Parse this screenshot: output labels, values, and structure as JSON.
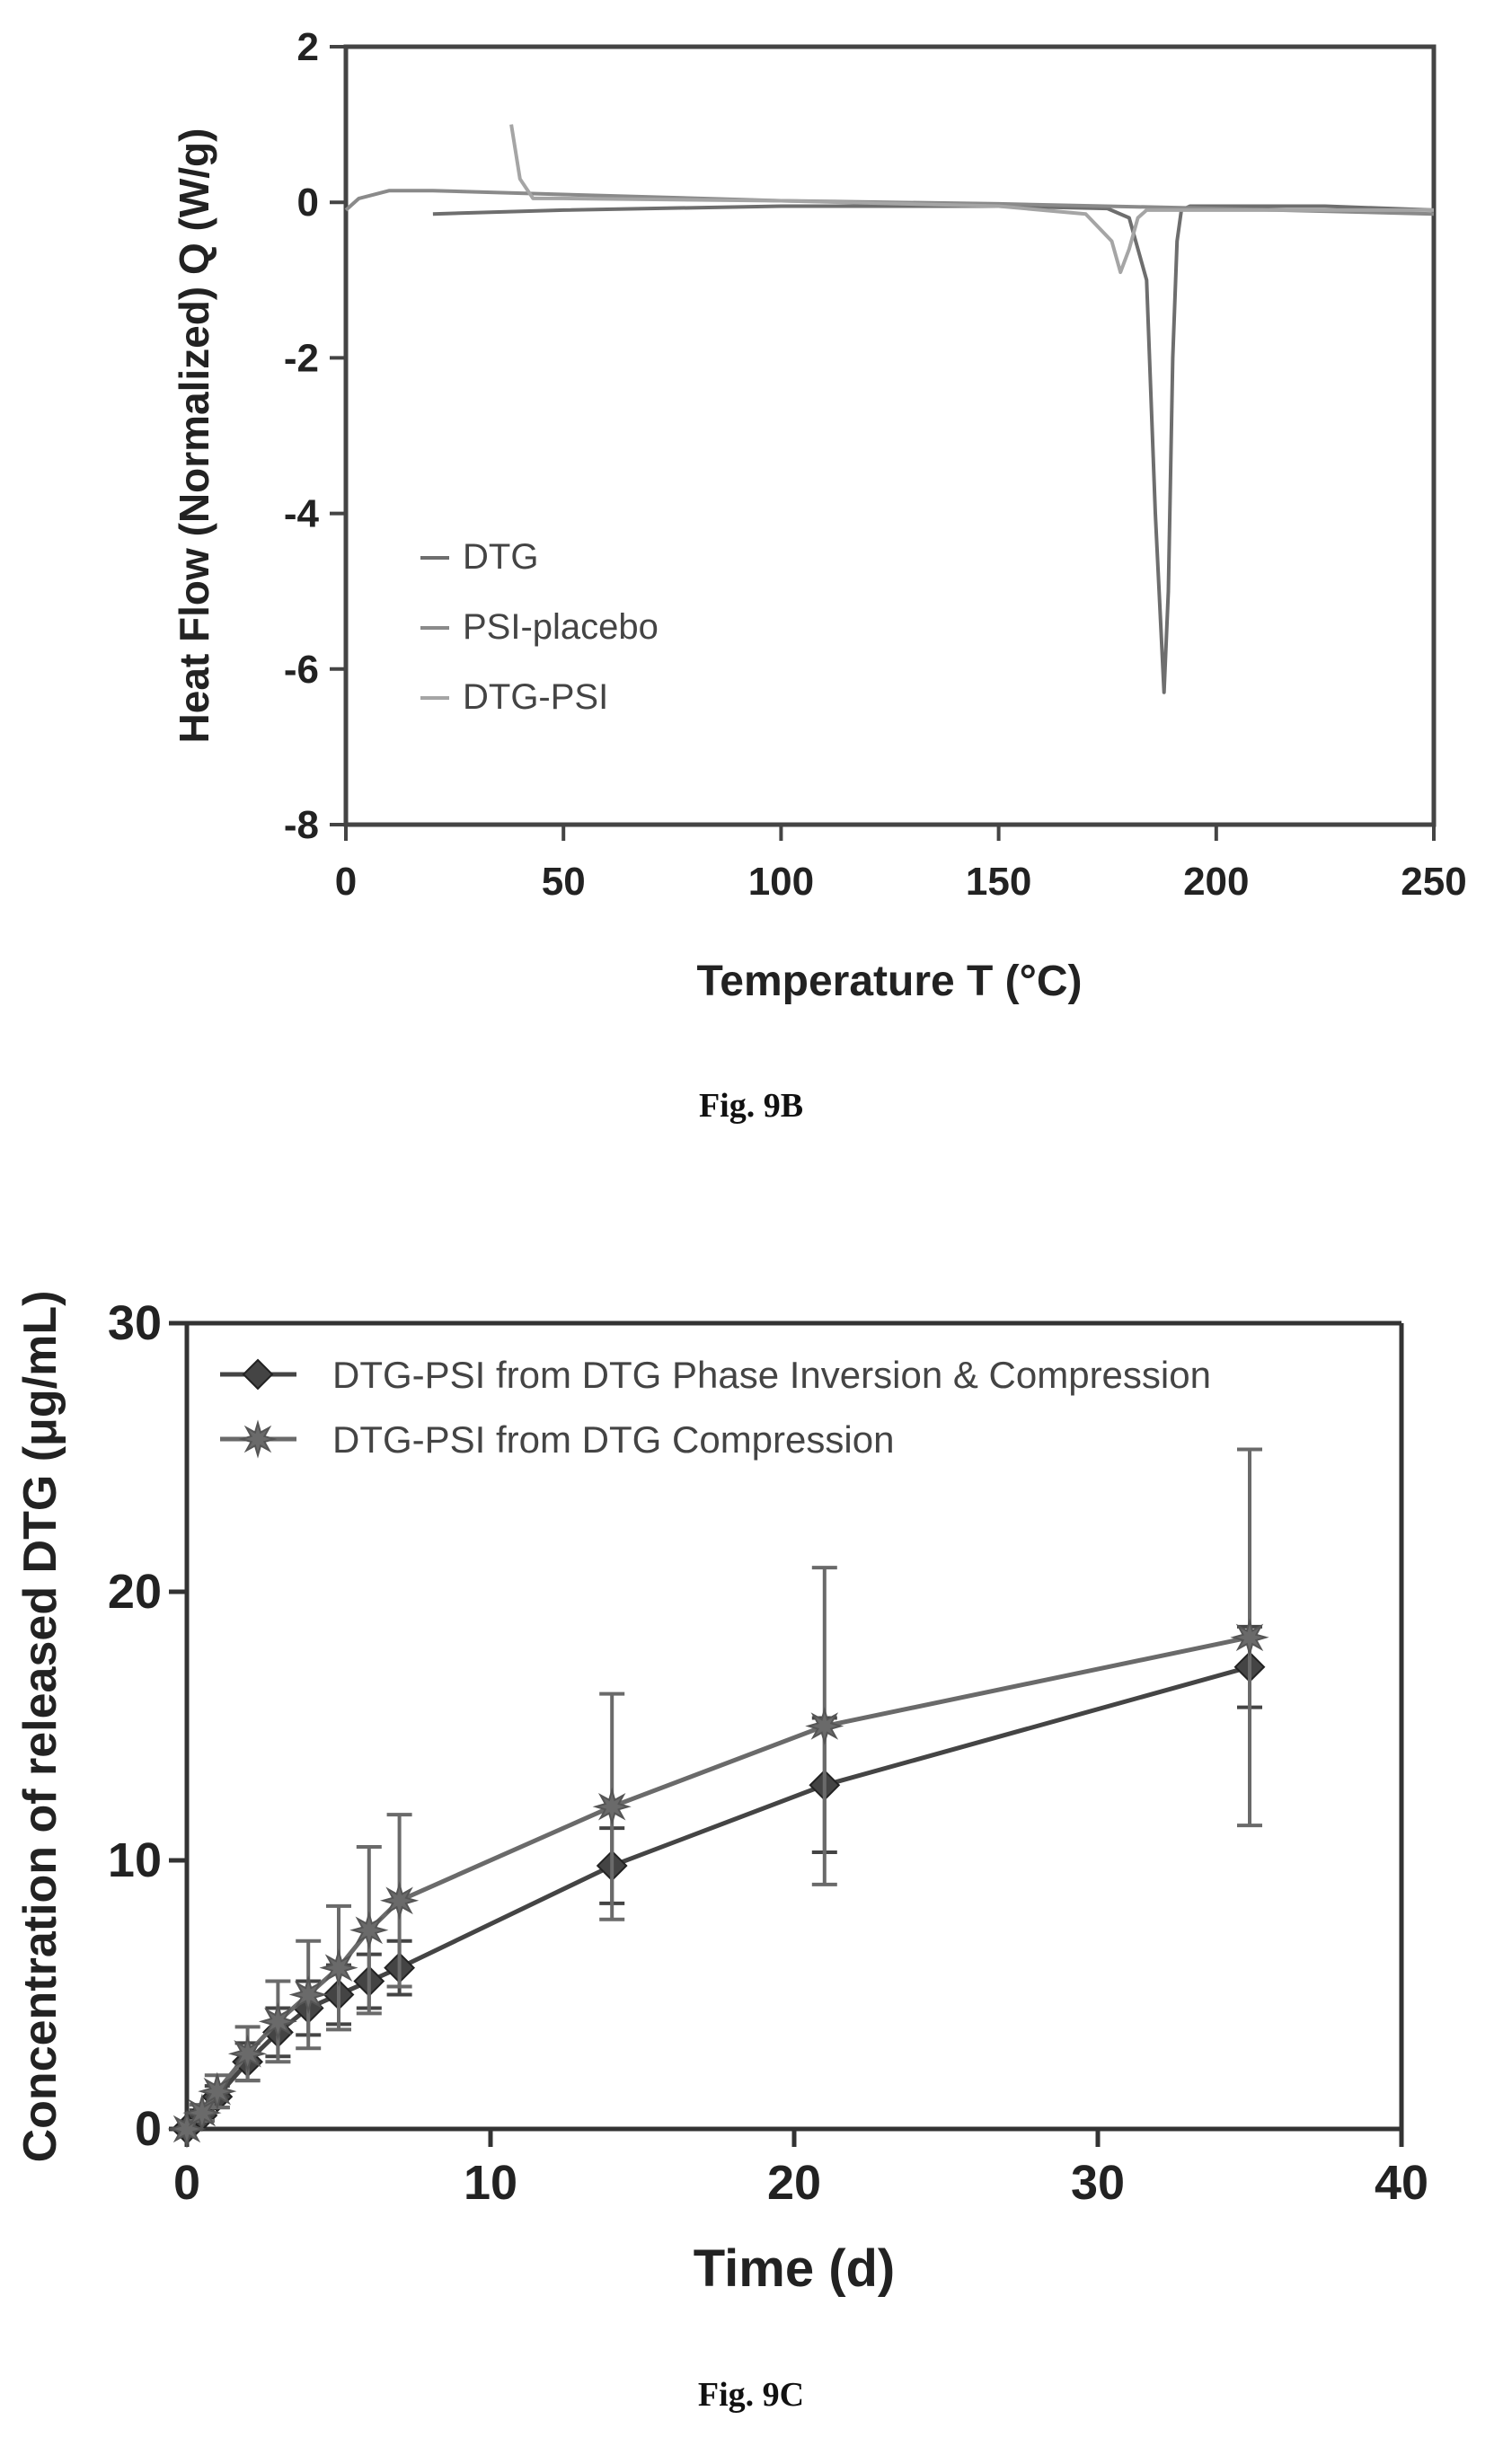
{
  "figures": {
    "fig9b_caption": "Fig. 9B",
    "fig9c_caption": "Fig. 9C"
  },
  "chart_data": [
    {
      "type": "line",
      "xlabel": "Temperature T (°C)",
      "ylabel": "Heat Flow (Normalized) Q (W/g)",
      "xlim": [
        0,
        250
      ],
      "ylim": [
        -8,
        2
      ],
      "xticks": [
        "0",
        "50",
        "100",
        "150",
        "200",
        "250"
      ],
      "yticks": [
        "2",
        "0",
        "-2",
        "-4",
        "-6",
        "-8"
      ],
      "legend_position": "lower-left",
      "grid": false,
      "series": [
        {
          "name": "DTG",
          "color": "#6e6e6e",
          "x": [
            20,
            50,
            100,
            150,
            175,
            180,
            184,
            186,
            188,
            189,
            190,
            191,
            192,
            194,
            200,
            225,
            250
          ],
          "y": [
            -0.15,
            -0.1,
            -0.05,
            -0.05,
            -0.08,
            -0.2,
            -1.0,
            -4.0,
            -6.3,
            -5.0,
            -2.0,
            -0.5,
            -0.1,
            -0.05,
            -0.05,
            -0.05,
            -0.1
          ]
        },
        {
          "name": "PSI-placebo",
          "color": "#8a8a8a",
          "x": [
            0,
            3,
            10,
            20,
            50,
            100,
            150,
            200,
            250
          ],
          "y": [
            -0.1,
            0.05,
            0.15,
            0.15,
            0.1,
            0.02,
            -0.02,
            -0.08,
            -0.15
          ]
        },
        {
          "name": "DTG-PSI",
          "color": "#a5a5a5",
          "x": [
            38,
            40,
            43,
            50,
            100,
            150,
            170,
            176,
            178,
            180,
            182,
            184,
            190,
            200,
            250
          ],
          "y": [
            1.0,
            0.3,
            0.05,
            0.05,
            0.02,
            -0.05,
            -0.15,
            -0.5,
            -0.9,
            -0.6,
            -0.2,
            -0.1,
            -0.1,
            -0.1,
            -0.1
          ]
        }
      ]
    },
    {
      "type": "line",
      "xlabel": "Time (d)",
      "ylabel": "Concentration of released DTG (μg/mL)",
      "xlim": [
        0,
        40
      ],
      "ylim": [
        0,
        30
      ],
      "xticks": [
        "0",
        "10",
        "20",
        "30",
        "40"
      ],
      "yticks": [
        "30",
        "20",
        "10",
        "0"
      ],
      "legend_position": "top-left",
      "grid": false,
      "series": [
        {
          "name": "DTG-PSI from DTG Phase Inversion & Compression",
          "color": "#444444",
          "marker": "diamond",
          "x": [
            0,
            0.5,
            1,
            2,
            3,
            4,
            5,
            6,
            7,
            14,
            21,
            35
          ],
          "y": [
            0,
            0.5,
            1.2,
            2.5,
            3.6,
            4.5,
            5.0,
            5.5,
            6.0,
            9.8,
            12.8,
            17.2
          ],
          "err": [
            0,
            0.2,
            0.4,
            0.7,
            0.9,
            1.0,
            1.1,
            1.0,
            1.0,
            1.4,
            2.5,
            1.5
          ]
        },
        {
          "name": "DTG-PSI from DTG Compression",
          "color": "#6a6a6a",
          "marker": "star",
          "x": [
            0,
            0.5,
            1,
            2,
            3,
            4,
            5,
            6,
            7,
            14,
            21,
            35
          ],
          "y": [
            0,
            0.6,
            1.4,
            2.8,
            4.0,
            5.0,
            6.0,
            7.4,
            8.5,
            12.0,
            15.0,
            18.3
          ],
          "err": [
            0,
            0.3,
            0.6,
            1.0,
            1.5,
            2.0,
            2.3,
            3.1,
            3.2,
            4.2,
            5.9,
            7.0
          ]
        }
      ]
    }
  ]
}
